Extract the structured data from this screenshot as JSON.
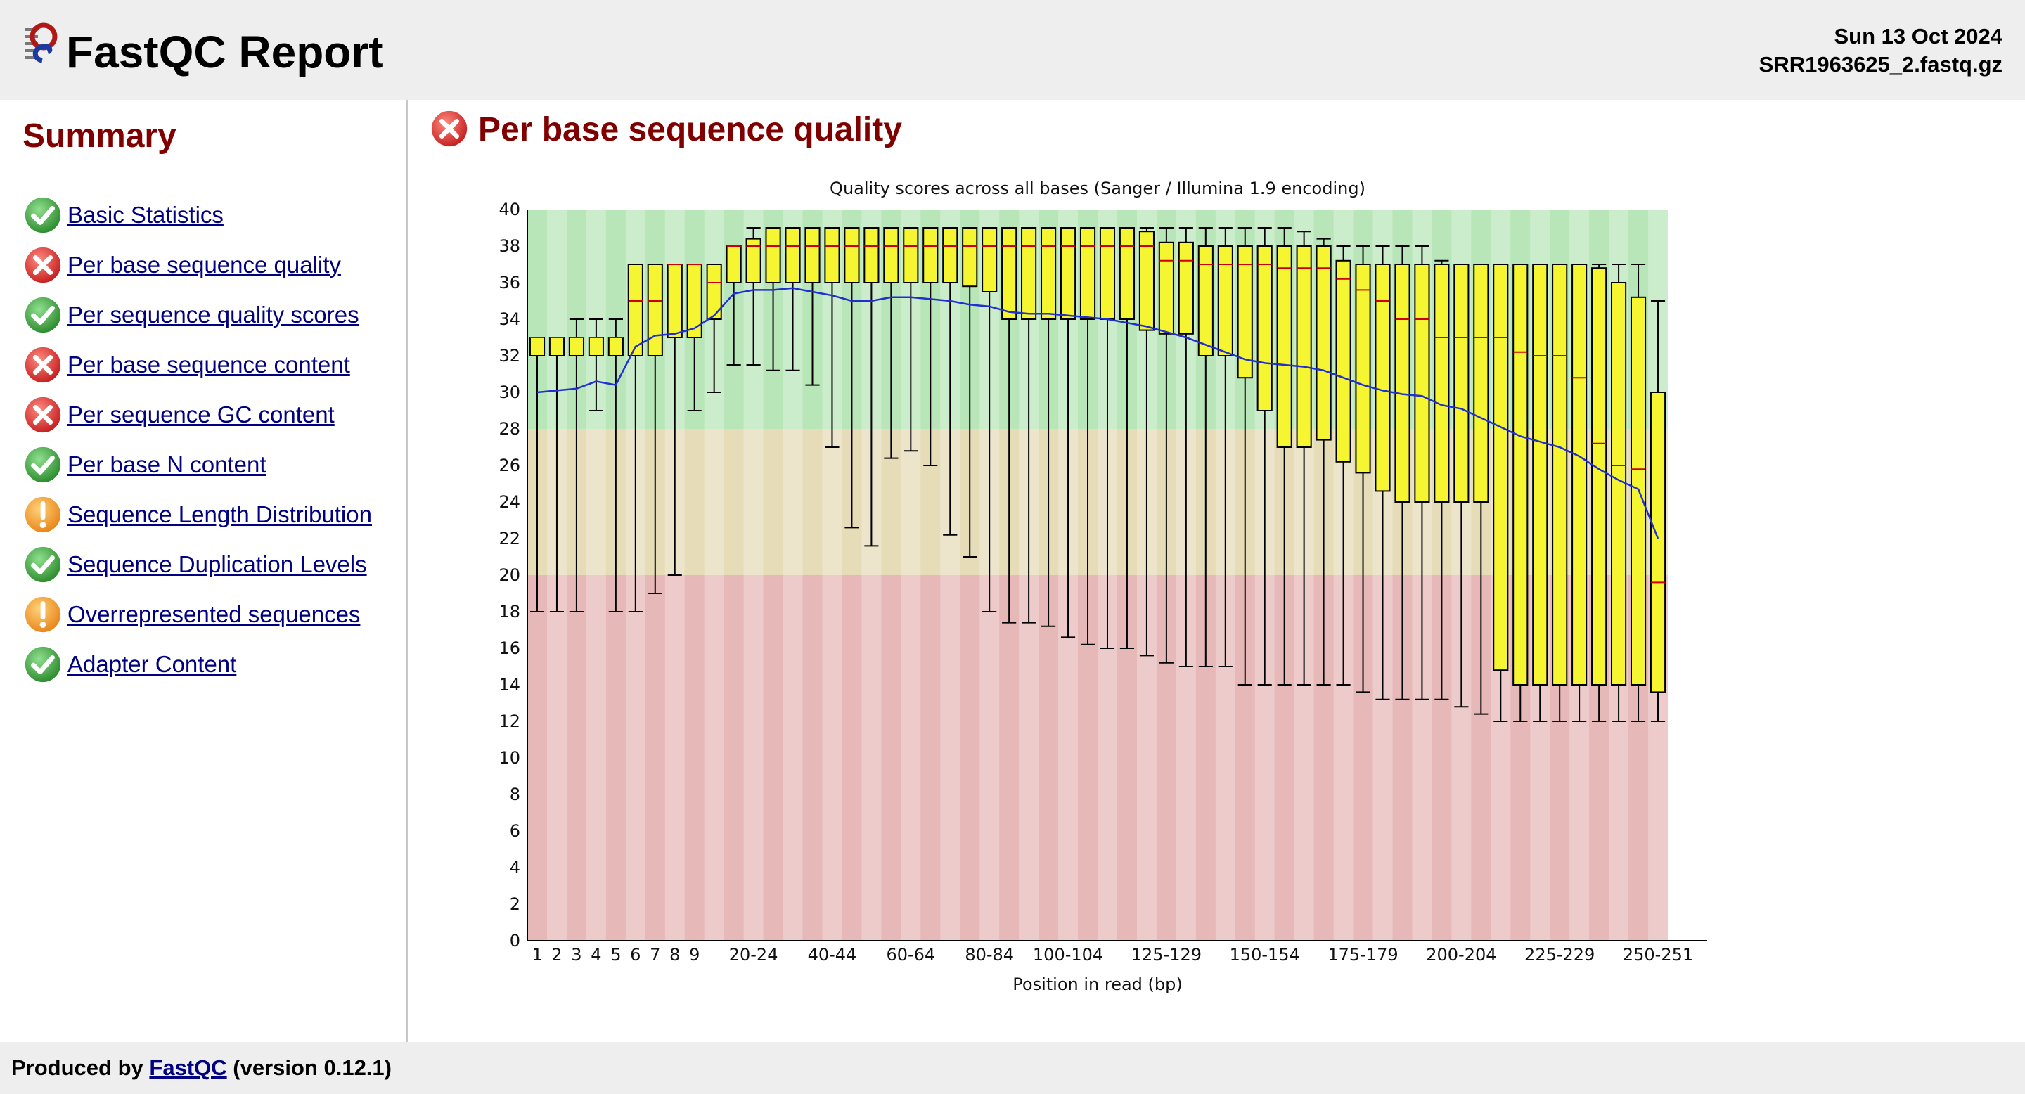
{
  "header": {
    "title": "FastQC Report",
    "date": "Sun 13 Oct 2024",
    "filename": "SRR1963625_2.fastq.gz"
  },
  "sidebar": {
    "heading": "Summary",
    "items": [
      {
        "label": "Basic Statistics",
        "status": "pass"
      },
      {
        "label": "Per base sequence quality",
        "status": "fail"
      },
      {
        "label": "Per sequence quality scores",
        "status": "pass"
      },
      {
        "label": "Per base sequence content",
        "status": "fail"
      },
      {
        "label": "Per sequence GC content",
        "status": "fail"
      },
      {
        "label": "Per base N content",
        "status": "pass"
      },
      {
        "label": "Sequence Length Distribution",
        "status": "warn"
      },
      {
        "label": "Sequence Duplication Levels",
        "status": "pass"
      },
      {
        "label": "Overrepresented sequences",
        "status": "warn"
      },
      {
        "label": "Adapter Content",
        "status": "pass"
      }
    ]
  },
  "main": {
    "section_title": "Per base sequence quality",
    "section_status": "fail"
  },
  "footer": {
    "prefix": "Produced by",
    "link": "FastQC",
    "suffix": "(version 0.12.1)"
  },
  "colors": {
    "pass": "#3a9d3a",
    "fail": "#d9231f",
    "warn": "#f08c1a",
    "title": "#800000",
    "link": "#000080",
    "box": "#f5f531",
    "median": "#cc0000",
    "mean": "#1f2fd1",
    "zone_good": "#b8e6b8",
    "zone_ok": "#e6dcb8",
    "zone_bad": "#e6b8b8"
  },
  "chart_data": {
    "type": "box",
    "title": "Quality scores across all bases (Sanger / Illumina 1.9 encoding)",
    "xlabel": "Position in read (bp)",
    "ylabel": "",
    "ylim": [
      0,
      40
    ],
    "yticks": [
      0,
      2,
      4,
      6,
      8,
      10,
      12,
      14,
      16,
      18,
      20,
      22,
      24,
      26,
      28,
      30,
      32,
      34,
      36,
      38,
      40
    ],
    "zones": [
      {
        "from": 28,
        "to": 40,
        "quality": "good"
      },
      {
        "from": 20,
        "to": 28,
        "quality": "ok"
      },
      {
        "from": 0,
        "to": 20,
        "quality": "bad"
      }
    ],
    "categories": [
      "1",
      "2",
      "3",
      "4",
      "5",
      "6",
      "7",
      "8",
      "9",
      "10-14",
      "15-19",
      "20-24",
      "25-29",
      "30-34",
      "35-39",
      "40-44",
      "45-49",
      "50-54",
      "55-59",
      "60-64",
      "65-69",
      "70-74",
      "75-79",
      "80-84",
      "85-89",
      "90-94",
      "95-99",
      "100-104",
      "105-109",
      "110-114",
      "115-119",
      "120-124",
      "125-129",
      "130-134",
      "135-139",
      "140-144",
      "145-149",
      "150-154",
      "155-159",
      "160-164",
      "165-169",
      "170-174",
      "175-179",
      "180-184",
      "185-189",
      "190-194",
      "195-199",
      "200-204",
      "205-209",
      "210-214",
      "215-219",
      "220-224",
      "225-229",
      "230-234",
      "235-239",
      "240-244",
      "245-249",
      "250-251"
    ],
    "xtick_labels": [
      "1",
      "2",
      "3",
      "4",
      "5",
      "6",
      "7",
      "8",
      "9",
      "20-24",
      "40-44",
      "60-64",
      "80-84",
      "100-104",
      "125-129",
      "150-154",
      "175-179",
      "200-204",
      "225-229",
      "250-251"
    ],
    "boxes": [
      {
        "low": 18,
        "q1": 32,
        "median": 33,
        "q3": 33,
        "high": 33,
        "mean": 30.0
      },
      {
        "low": 18,
        "q1": 32,
        "median": 33,
        "q3": 33,
        "high": 33,
        "mean": 30.1
      },
      {
        "low": 18,
        "q1": 32,
        "median": 33,
        "q3": 33,
        "high": 34,
        "mean": 30.2
      },
      {
        "low": 29,
        "q1": 32,
        "median": 33,
        "q3": 33,
        "high": 34,
        "mean": 30.6
      },
      {
        "low": 18,
        "q1": 32,
        "median": 33,
        "q3": 33,
        "high": 34,
        "mean": 30.4
      },
      {
        "low": 18,
        "q1": 32,
        "median": 35,
        "q3": 37,
        "high": 37,
        "mean": 32.5
      },
      {
        "low": 19,
        "q1": 32,
        "median": 35,
        "q3": 37,
        "high": 37,
        "mean": 33.1
      },
      {
        "low": 20,
        "q1": 33,
        "median": 37,
        "q3": 37,
        "high": 37,
        "mean": 33.2
      },
      {
        "low": 29,
        "q1": 33,
        "median": 37,
        "q3": 37,
        "high": 37,
        "mean": 33.5
      },
      {
        "low": 30,
        "q1": 34,
        "median": 36,
        "q3": 37,
        "high": 37,
        "mean": 34.2
      },
      {
        "low": 31.5,
        "q1": 36,
        "median": 38,
        "q3": 38,
        "high": 38,
        "mean": 35.4
      },
      {
        "low": 31.5,
        "q1": 36,
        "median": 38,
        "q3": 38.4,
        "high": 39,
        "mean": 35.6
      },
      {
        "low": 31.2,
        "q1": 36,
        "median": 38,
        "q3": 39,
        "high": 39,
        "mean": 35.6
      },
      {
        "low": 31.2,
        "q1": 36,
        "median": 38,
        "q3": 39,
        "high": 39,
        "mean": 35.7
      },
      {
        "low": 30.4,
        "q1": 36,
        "median": 38,
        "q3": 39,
        "high": 39,
        "mean": 35.5
      },
      {
        "low": 27,
        "q1": 36,
        "median": 38,
        "q3": 39,
        "high": 39,
        "mean": 35.3
      },
      {
        "low": 22.6,
        "q1": 36,
        "median": 38,
        "q3": 39,
        "high": 39,
        "mean": 35.0
      },
      {
        "low": 21.6,
        "q1": 36,
        "median": 38,
        "q3": 39,
        "high": 39,
        "mean": 35.0
      },
      {
        "low": 26.4,
        "q1": 36,
        "median": 38,
        "q3": 39,
        "high": 39,
        "mean": 35.2
      },
      {
        "low": 26.8,
        "q1": 36,
        "median": 38,
        "q3": 39,
        "high": 39,
        "mean": 35.2
      },
      {
        "low": 26,
        "q1": 36,
        "median": 38,
        "q3": 39,
        "high": 39,
        "mean": 35.1
      },
      {
        "low": 22.2,
        "q1": 36,
        "median": 38,
        "q3": 39,
        "high": 39,
        "mean": 35.0
      },
      {
        "low": 21,
        "q1": 35.8,
        "median": 38,
        "q3": 39,
        "high": 39,
        "mean": 34.8
      },
      {
        "low": 18,
        "q1": 35.5,
        "median": 38,
        "q3": 39,
        "high": 39,
        "mean": 34.7
      },
      {
        "low": 17.4,
        "q1": 34,
        "median": 38,
        "q3": 39,
        "high": 39,
        "mean": 34.4
      },
      {
        "low": 17.4,
        "q1": 34,
        "median": 38,
        "q3": 39,
        "high": 39,
        "mean": 34.3
      },
      {
        "low": 17.2,
        "q1": 34,
        "median": 38,
        "q3": 39,
        "high": 39,
        "mean": 34.3
      },
      {
        "low": 16.6,
        "q1": 34,
        "median": 38,
        "q3": 39,
        "high": 39,
        "mean": 34.2
      },
      {
        "low": 16.2,
        "q1": 34,
        "median": 38,
        "q3": 39,
        "high": 39,
        "mean": 34.1
      },
      {
        "low": 16,
        "q1": 34,
        "median": 38,
        "q3": 39,
        "high": 39,
        "mean": 34.0
      },
      {
        "low": 16,
        "q1": 34,
        "median": 38,
        "q3": 39,
        "high": 39,
        "mean": 33.8
      },
      {
        "low": 15.6,
        "q1": 33.4,
        "median": 38,
        "q3": 38.8,
        "high": 39,
        "mean": 33.6
      },
      {
        "low": 15.2,
        "q1": 33.2,
        "median": 37.2,
        "q3": 38.2,
        "high": 39,
        "mean": 33.3
      },
      {
        "low": 15,
        "q1": 33.2,
        "median": 37.2,
        "q3": 38.2,
        "high": 39,
        "mean": 33.0
      },
      {
        "low": 15,
        "q1": 32,
        "median": 37,
        "q3": 38,
        "high": 39,
        "mean": 32.6
      },
      {
        "low": 15,
        "q1": 32,
        "median": 37,
        "q3": 38,
        "high": 39,
        "mean": 32.2
      },
      {
        "low": 14,
        "q1": 30.8,
        "median": 37,
        "q3": 38,
        "high": 39,
        "mean": 31.8
      },
      {
        "low": 14,
        "q1": 29,
        "median": 37,
        "q3": 38,
        "high": 39,
        "mean": 31.6
      },
      {
        "low": 14,
        "q1": 27,
        "median": 36.8,
        "q3": 38,
        "high": 39,
        "mean": 31.5
      },
      {
        "low": 14,
        "q1": 27,
        "median": 36.8,
        "q3": 38,
        "high": 38.8,
        "mean": 31.4
      },
      {
        "low": 14,
        "q1": 27.4,
        "median": 36.8,
        "q3": 38,
        "high": 38.4,
        "mean": 31.2
      },
      {
        "low": 14,
        "q1": 26.2,
        "median": 36.2,
        "q3": 37.2,
        "high": 38,
        "mean": 30.8
      },
      {
        "low": 13.6,
        "q1": 25.6,
        "median": 35.6,
        "q3": 37,
        "high": 38,
        "mean": 30.4
      },
      {
        "low": 13.2,
        "q1": 24.6,
        "median": 35,
        "q3": 37,
        "high": 38,
        "mean": 30.1
      },
      {
        "low": 13.2,
        "q1": 24,
        "median": 34,
        "q3": 37,
        "high": 38,
        "mean": 29.9
      },
      {
        "low": 13.2,
        "q1": 24,
        "median": 34,
        "q3": 37,
        "high": 38,
        "mean": 29.8
      },
      {
        "low": 13.2,
        "q1": 24,
        "median": 33,
        "q3": 37,
        "high": 37.2,
        "mean": 29.3
      },
      {
        "low": 12.8,
        "q1": 24,
        "median": 33,
        "q3": 37,
        "high": 37,
        "mean": 29.1
      },
      {
        "low": 12.4,
        "q1": 24,
        "median": 33,
        "q3": 37,
        "high": 37,
        "mean": 28.6
      },
      {
        "low": 12,
        "q1": 14.8,
        "median": 33,
        "q3": 37,
        "high": 37,
        "mean": 28.1
      },
      {
        "low": 12,
        "q1": 14,
        "median": 32.2,
        "q3": 37,
        "high": 37,
        "mean": 27.6
      },
      {
        "low": 12,
        "q1": 14,
        "median": 32,
        "q3": 37,
        "high": 37,
        "mean": 27.3
      },
      {
        "low": 12,
        "q1": 14,
        "median": 32,
        "q3": 37,
        "high": 37,
        "mean": 27.0
      },
      {
        "low": 12,
        "q1": 14,
        "median": 30.8,
        "q3": 37,
        "high": 37,
        "mean": 26.5
      },
      {
        "low": 12,
        "q1": 14,
        "median": 27.2,
        "q3": 36.8,
        "high": 37,
        "mean": 25.8
      },
      {
        "low": 12,
        "q1": 14,
        "median": 26,
        "q3": 36,
        "high": 37,
        "mean": 25.2
      },
      {
        "low": 12,
        "q1": 14,
        "median": 25.8,
        "q3": 35.2,
        "high": 37,
        "mean": 24.7
      },
      {
        "low": 12,
        "q1": 13.6,
        "median": 19.6,
        "q3": 30,
        "high": 35,
        "mean": 22.0
      }
    ]
  }
}
